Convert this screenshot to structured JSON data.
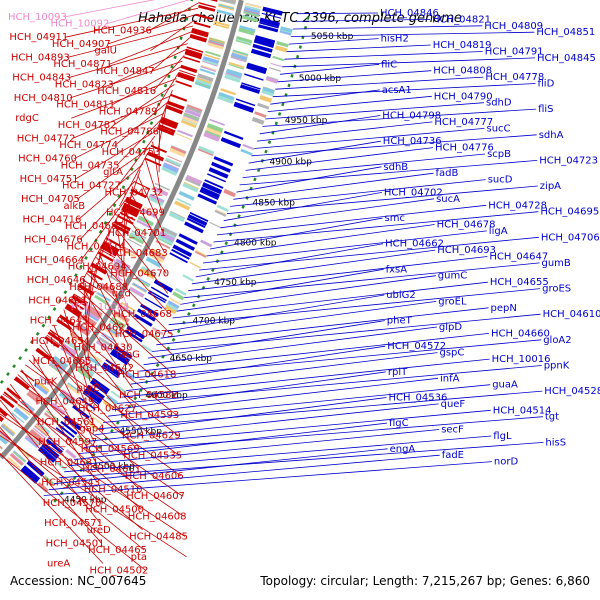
{
  "title": "Hahella chejuensis KCTC 2396, complete genome",
  "footer": {
    "accession": "Accession: NC_007645",
    "stats": "Topology: circular; Length: 7,215,267 bp; Genes: 6,860"
  },
  "colors": {
    "forward": "#0000cc",
    "reverse": "#cc0000",
    "rna": "#ee88cc",
    "guide": "#228822",
    "backbone": "#888888"
  },
  "ticks": [
    "5050 kbp",
    "5000 kbp",
    "4950 kbp",
    "4900 kbp",
    "4850 kbp",
    "4800 kbp",
    "4750 kbp",
    "4700 kbp",
    "4650 kbp",
    "4600 kbp",
    "4550 kbp",
    "4500 kbp",
    "4450 kbp"
  ],
  "left_labels": [
    {
      "t": "HCH_10093",
      "c": "pink"
    },
    {
      "t": "HCH_10092",
      "c": "pink"
    },
    {
      "t": "HCH_04936",
      "c": "red"
    },
    {
      "t": "HCH_04911",
      "c": "red"
    },
    {
      "t": "HCH_04907",
      "c": "red"
    },
    {
      "t": "galU",
      "c": "red"
    },
    {
      "t": "HCH_04893",
      "c": "red"
    },
    {
      "t": "HCH_04871",
      "c": "red"
    },
    {
      "t": "HCH_04847",
      "c": "red"
    },
    {
      "t": "HCH_04843",
      "c": "red"
    },
    {
      "t": "HCH_04823",
      "c": "red"
    },
    {
      "t": "HCH_04816",
      "c": "red"
    },
    {
      "t": "HCH_04810",
      "c": "red"
    },
    {
      "t": "HCH_04811",
      "c": "red"
    },
    {
      "t": "HCH_04789",
      "c": "red"
    },
    {
      "t": "rdgC",
      "c": "red"
    },
    {
      "t": "HCH_04782",
      "c": "red"
    },
    {
      "t": "HCH_04786",
      "c": "red"
    },
    {
      "t": "HCH_04772",
      "c": "red"
    },
    {
      "t": "HCH_04774",
      "c": "red"
    },
    {
      "t": "HCH_04753",
      "c": "red"
    },
    {
      "t": "HCH_04760",
      "c": "red"
    },
    {
      "t": "HCH_04735",
      "c": "red"
    },
    {
      "t": "gltA",
      "c": "red"
    },
    {
      "t": "HCH_04751",
      "c": "red"
    },
    {
      "t": "HCH_04727",
      "c": "red"
    },
    {
      "t": "HCH_04732",
      "c": "red"
    },
    {
      "t": "HCH_04705",
      "c": "red"
    },
    {
      "t": "alkB",
      "c": "red"
    },
    {
      "t": "HCH_04699",
      "c": "red"
    },
    {
      "t": "HCH_04716",
      "c": "red"
    },
    {
      "t": "HCH_04685",
      "c": "red"
    },
    {
      "t": "HCH_04701",
      "c": "red"
    },
    {
      "t": "HCH_04676",
      "c": "red"
    },
    {
      "t": "HCH_04714",
      "c": "red"
    },
    {
      "t": "HCH_04683",
      "c": "red"
    },
    {
      "t": "HCH_04664",
      "c": "red"
    },
    {
      "t": "HCH_04694",
      "c": "red"
    },
    {
      "t": "HCH_04670",
      "c": "red"
    },
    {
      "t": "HCH_04646",
      "c": "red"
    },
    {
      "t": "HCH_04688",
      "c": "red"
    },
    {
      "t": "ugd",
      "c": "red"
    },
    {
      "t": "HCH_04661",
      "c": "red"
    },
    {
      "t": "HCH_10084",
      "c": "pink"
    },
    {
      "t": "HCH_04668",
      "c": "red"
    },
    {
      "t": "HCH_04645",
      "c": "red"
    },
    {
      "t": "HCH_04621",
      "c": "red"
    },
    {
      "t": "HCH_04675",
      "c": "red"
    },
    {
      "t": "HCH_04654",
      "c": "red"
    },
    {
      "t": "HCH_04630",
      "c": "red"
    },
    {
      "t": "fabG",
      "c": "red"
    },
    {
      "t": "HCH_04665",
      "c": "red"
    },
    {
      "t": "HCH_04642",
      "c": "red"
    },
    {
      "t": "HCH_04618",
      "c": "red"
    },
    {
      "t": "purK",
      "c": "red"
    },
    {
      "t": "purE",
      "c": "red"
    },
    {
      "t": "HCH_04582",
      "c": "red"
    },
    {
      "t": "HCH_04649",
      "c": "red"
    },
    {
      "t": "HCH_04627",
      "c": "red"
    },
    {
      "t": "HCH_04593",
      "c": "red"
    },
    {
      "t": "HCH_04561",
      "c": "red"
    },
    {
      "t": "gap4",
      "c": "red"
    },
    {
      "t": "HCH_04629",
      "c": "red"
    },
    {
      "t": "HCH_04597",
      "c": "red"
    },
    {
      "t": "HCH_04569",
      "c": "red"
    },
    {
      "t": "HCH_04535",
      "c": "red"
    },
    {
      "t": "HCH_04631",
      "c": "red"
    },
    {
      "t": "HCH_04601",
      "c": "red"
    },
    {
      "t": "HCH_04606",
      "c": "red"
    },
    {
      "t": "HCH_04543",
      "c": "red"
    },
    {
      "t": "HCH_04510",
      "c": "red"
    },
    {
      "t": "HCH_04607",
      "c": "red"
    },
    {
      "t": "HCH_04570",
      "c": "red"
    },
    {
      "t": "HCH_04500",
      "c": "red"
    },
    {
      "t": "HCH_04608",
      "c": "red"
    },
    {
      "t": "HCH_04571",
      "c": "red"
    },
    {
      "t": "ureD",
      "c": "red"
    },
    {
      "t": "HCH_04485",
      "c": "red"
    },
    {
      "t": "HCH_04501",
      "c": "red"
    },
    {
      "t": "HCH_04465",
      "c": "red"
    },
    {
      "t": "pta",
      "c": "red"
    },
    {
      "t": "ureA",
      "c": "red"
    },
    {
      "t": "HCH_04502",
      "c": "red"
    }
  ],
  "right_labels": [
    "HCH_04846",
    "HCH_04821",
    "HCH_04809",
    "HCH_04851",
    "hisH2",
    "HCH_04819",
    "HCH_04791",
    "HCH_04845",
    "fliC",
    "HCH_04808",
    "HCH_04778",
    "fliD",
    "acsA1",
    "HCH_04790",
    "sdhD",
    "fliS",
    "HCH_04798",
    "HCH_04777",
    "sucC",
    "sdhA",
    "HCH_04736",
    "HCH_04776",
    "scpB",
    "HCH_04723",
    "sdhB",
    "fadB",
    "sucD",
    "zipA",
    "HCH_04702",
    "sucA",
    "HCH_04728",
    "HCH_04695",
    "smc",
    "HCH_04678",
    "ligA",
    "HCH_04706",
    "HCH_04662",
    "HCH_04693",
    "HCH_04647",
    "gumB",
    "fxsA",
    "gumC",
    "HCH_04655",
    "groES",
    "ubiG2",
    "groEL",
    "pepN",
    "HCH_04610",
    "pheT",
    "glpD",
    "HCH_04660",
    "gloA2",
    "HCH_04572",
    "gspC",
    "HCH_10016",
    "ppnK",
    "rplT",
    "infA",
    "guaA",
    "HCH_04528",
    "HCH_04536",
    "queF",
    "HCH_04514",
    "tgt",
    "flgC",
    "secF",
    "flgL",
    "hisS",
    "engA",
    "fadE",
    "norD"
  ]
}
